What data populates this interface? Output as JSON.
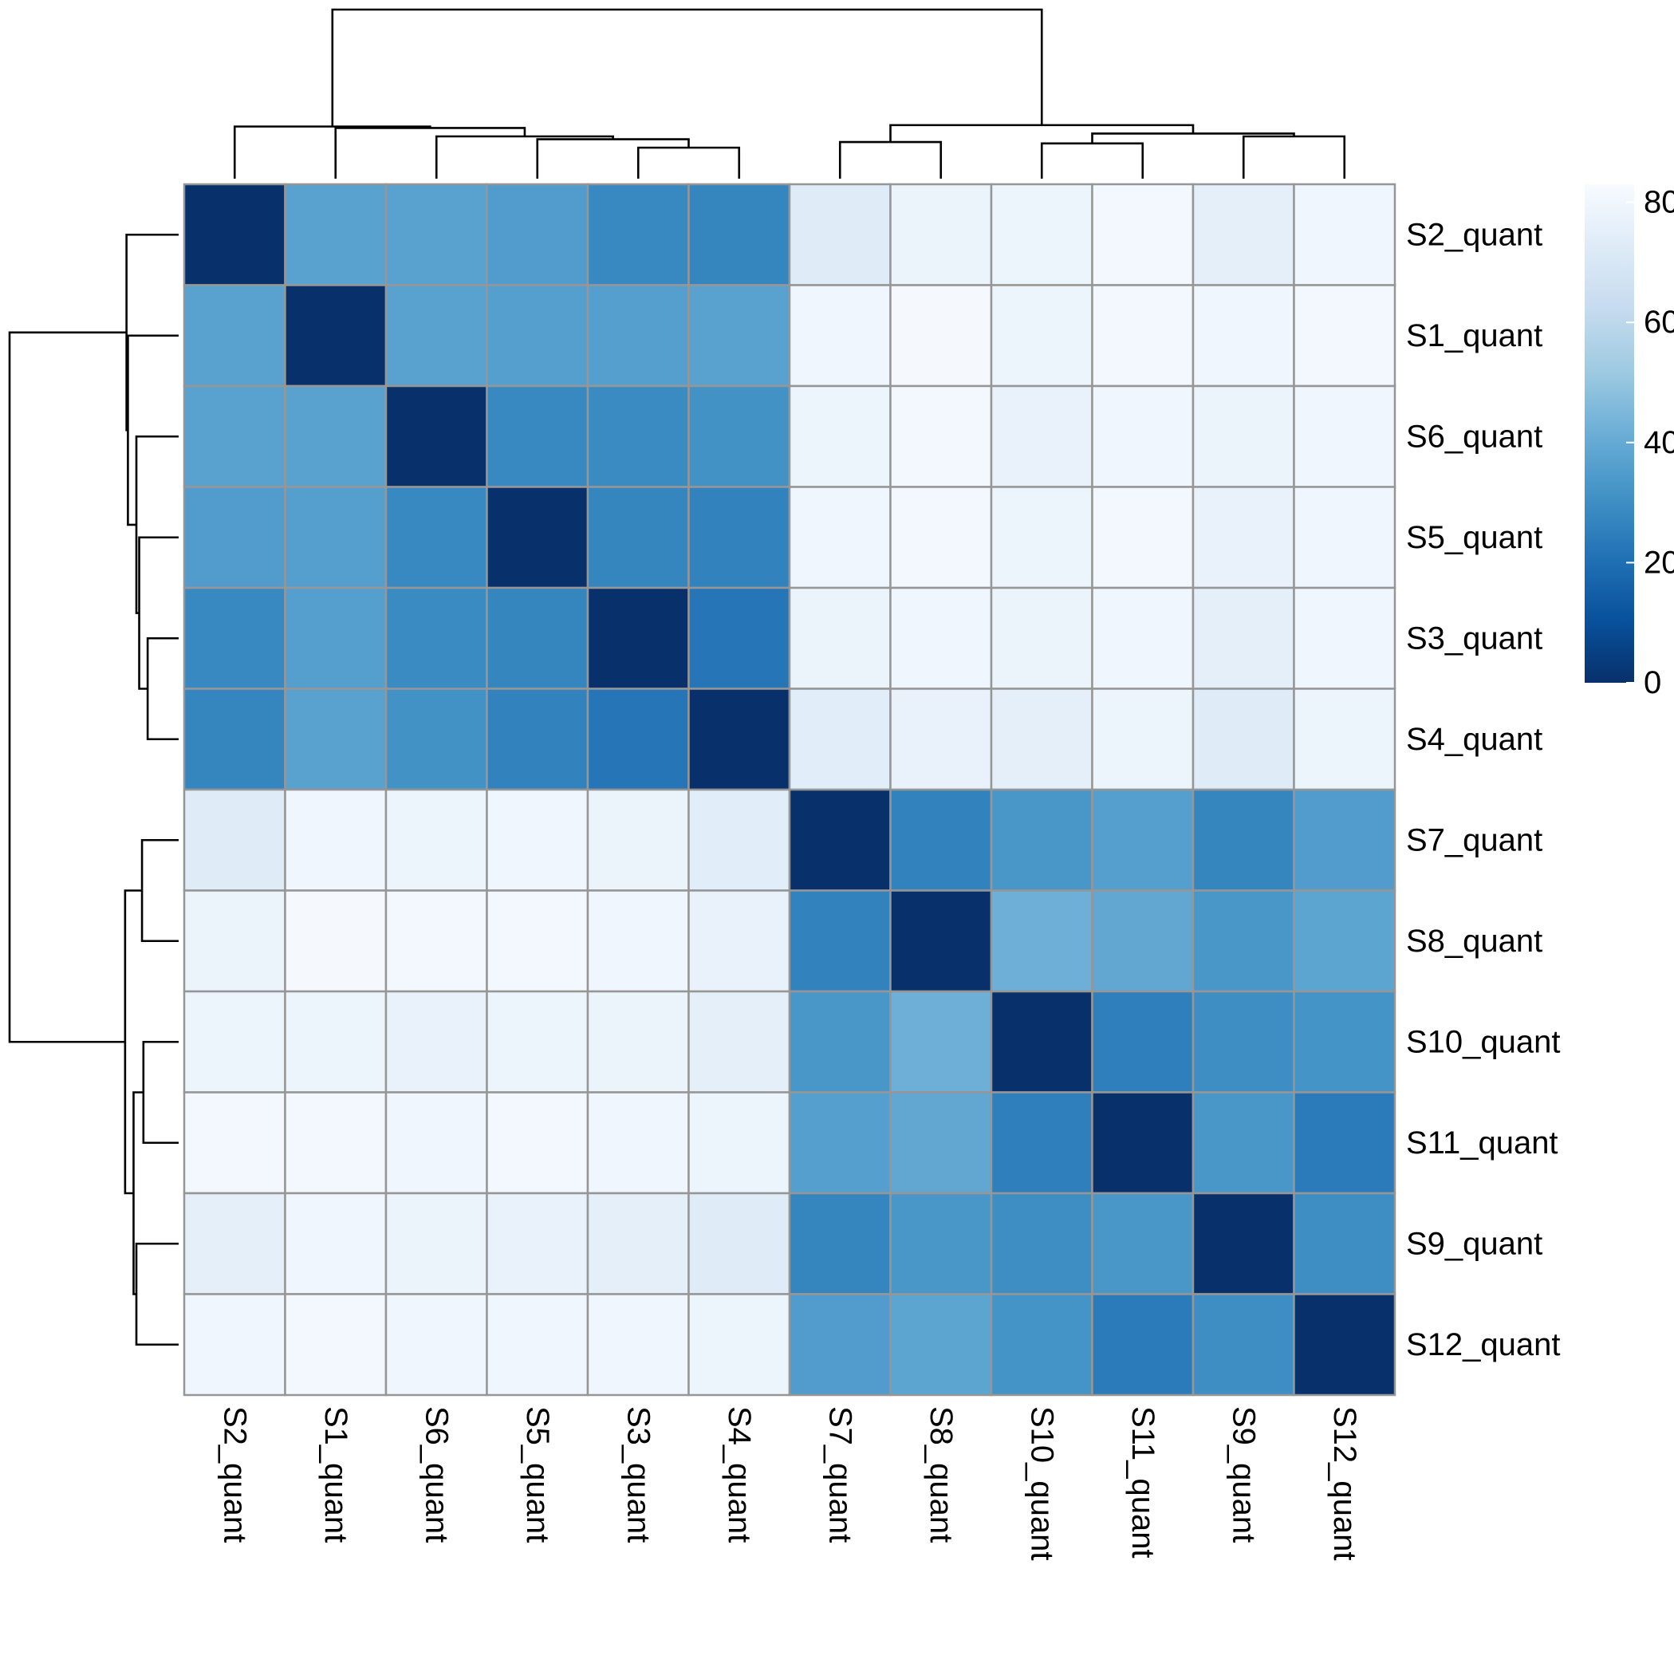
{
  "chart_data": {
    "type": "heatmap",
    "title": "",
    "labels": [
      "S2_quant",
      "S1_quant",
      "S6_quant",
      "S5_quant",
      "S3_quant",
      "S4_quant",
      "S7_quant",
      "S8_quant",
      "S10_quant",
      "S11_quant",
      "S9_quant",
      "S12_quant"
    ],
    "matrix": [
      [
        0,
        37,
        37,
        35,
        28,
        27,
        73,
        78,
        79,
        81,
        75,
        80
      ],
      [
        37,
        0,
        37,
        36,
        36,
        37,
        80,
        82,
        79,
        81,
        80,
        81
      ],
      [
        37,
        37,
        0,
        28,
        29,
        31,
        79,
        81,
        77,
        80,
        78,
        80
      ],
      [
        35,
        36,
        28,
        0,
        27,
        26,
        80,
        81,
        79,
        81,
        77,
        80
      ],
      [
        28,
        36,
        29,
        27,
        0,
        22,
        78,
        80,
        78,
        80,
        75,
        80
      ],
      [
        27,
        37,
        31,
        26,
        22,
        0,
        74,
        77,
        75,
        79,
        73,
        79
      ],
      [
        73,
        80,
        79,
        80,
        78,
        74,
        0,
        26,
        33,
        36,
        27,
        35
      ],
      [
        78,
        82,
        81,
        81,
        80,
        77,
        26,
        0,
        42,
        39,
        33,
        38
      ],
      [
        79,
        79,
        77,
        79,
        78,
        75,
        33,
        42,
        0,
        25,
        30,
        32
      ],
      [
        81,
        81,
        80,
        81,
        80,
        79,
        36,
        39,
        25,
        0,
        33,
        24
      ],
      [
        75,
        80,
        78,
        77,
        75,
        73,
        27,
        33,
        30,
        33,
        0,
        30
      ],
      [
        80,
        81,
        80,
        80,
        80,
        79,
        35,
        38,
        32,
        24,
        30,
        0
      ]
    ],
    "color_scale": {
      "min": 0,
      "max": 83,
      "colors": [
        "#08306b",
        "#08519c",
        "#2171b5",
        "#4292c6",
        "#6baed6",
        "#9ecae1",
        "#c6dbef",
        "#deebf7",
        "#f7fbff"
      ],
      "ticks": [
        0,
        20,
        40,
        60,
        80
      ]
    },
    "cell_border_color": "#969696",
    "dendrogram": {
      "merges": [
        {
          "left": [
            "S3_quant"
          ],
          "right": [
            "S4_quant"
          ],
          "height": 22
        },
        {
          "left": [
            "S5_quant"
          ],
          "right": [
            "S3_quant",
            "S4_quant"
          ],
          "height": 28
        },
        {
          "left": [
            "S6_quant"
          ],
          "right": [
            "S5_quant",
            "S3_quant",
            "S4_quant"
          ],
          "height": 30
        },
        {
          "left": [
            "S1_quant"
          ],
          "right": [
            "S6_quant",
            "S5_quant",
            "S3_quant",
            "S4_quant"
          ],
          "height": 36
        },
        {
          "left": [
            "S2_quant"
          ],
          "right": [
            "S1_quant",
            "S6_quant",
            "S5_quant",
            "S3_quant",
            "S4_quant"
          ],
          "height": 37
        },
        {
          "left": [
            "S7_quant"
          ],
          "right": [
            "S8_quant"
          ],
          "height": 26
        },
        {
          "left": [
            "S10_quant"
          ],
          "right": [
            "S11_quant"
          ],
          "height": 25
        },
        {
          "left": [
            "S9_quant"
          ],
          "right": [
            "S12_quant"
          ],
          "height": 30
        },
        {
          "left": [
            "S10_quant",
            "S11_quant"
          ],
          "right": [
            "S9_quant",
            "S12_quant"
          ],
          "height": 32
        },
        {
          "left": [
            "S7_quant",
            "S8_quant"
          ],
          "right": [
            "S10_quant",
            "S11_quant",
            "S9_quant",
            "S12_quant"
          ],
          "height": 38
        },
        {
          "left": [
            "S2_quant",
            "S1_quant",
            "S6_quant",
            "S5_quant",
            "S3_quant",
            "S4_quant"
          ],
          "right": [
            "S7_quant",
            "S8_quant",
            "S10_quant",
            "S11_quant",
            "S9_quant",
            "S12_quant"
          ],
          "height": 120
        }
      ]
    }
  }
}
